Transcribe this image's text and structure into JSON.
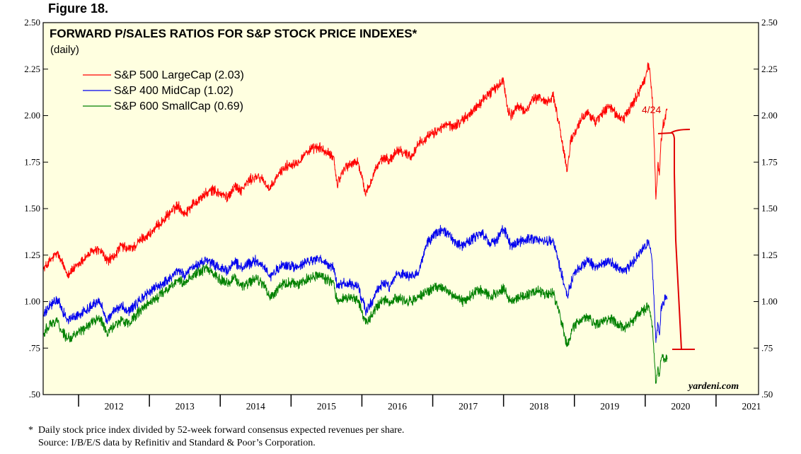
{
  "figure_label": "Figure 18.",
  "brand": "yardeni.com",
  "footnote": {
    "line1": "*  Daily stock price index divided by 52-week forward consensus expected revenues per share.",
    "line2": "    Source: I/B/E/S data by Refinitiv and Standard & Poor’s Corporation."
  },
  "chart_data": {
    "type": "line",
    "title": "FORWARD P/SALES RATIOS FOR S&P STOCK PRICE INDEXES*",
    "subtitle": "(daily)",
    "xlabel": "",
    "ylabel": "",
    "x_unit": "year",
    "xlim": [
      2011.5,
      2021.6
    ],
    "ylim": [
      0.5,
      2.5
    ],
    "yticks": [
      0.5,
      0.75,
      1.0,
      1.25,
      1.5,
      1.75,
      2.0,
      2.25,
      2.5
    ],
    "ytick_labels": [
      ".50",
      ".75",
      "1.00",
      "1.25",
      "1.50",
      "1.75",
      "2.00",
      "2.25",
      "2.50"
    ],
    "x_category_labels": [
      "2012",
      "2013",
      "2014",
      "2015",
      "2016",
      "2017",
      "2018",
      "2019",
      "2020",
      "2021"
    ],
    "legend_position": "top-left",
    "grid": false,
    "background": "#ffffe0",
    "annotations": [
      {
        "text": "4/24",
        "color": "#dd0000"
      }
    ],
    "series": [
      {
        "name": "S&P 500 LargeCap (2.03)",
        "color": "#ff0000",
        "x": [
          2011.5,
          2011.6,
          2011.7,
          2011.75,
          2011.85,
          2011.95,
          2012.1,
          2012.2,
          2012.3,
          2012.4,
          2012.5,
          2012.6,
          2012.7,
          2012.8,
          2012.9,
          2013.0,
          2013.1,
          2013.2,
          2013.3,
          2013.4,
          2013.5,
          2013.6,
          2013.7,
          2013.8,
          2013.9,
          2014.0,
          2014.1,
          2014.2,
          2014.3,
          2014.4,
          2014.5,
          2014.6,
          2014.7,
          2014.8,
          2014.9,
          2015.0,
          2015.1,
          2015.2,
          2015.3,
          2015.4,
          2015.5,
          2015.6,
          2015.65,
          2015.75,
          2015.85,
          2015.95,
          2016.05,
          2016.1,
          2016.2,
          2016.3,
          2016.4,
          2016.5,
          2016.6,
          2016.7,
          2016.8,
          2016.9,
          2017.0,
          2017.1,
          2017.2,
          2017.3,
          2017.4,
          2017.5,
          2017.6,
          2017.7,
          2017.8,
          2017.9,
          2018.0,
          2018.05,
          2018.1,
          2018.2,
          2018.3,
          2018.4,
          2018.5,
          2018.6,
          2018.7,
          2018.8,
          2018.9,
          2018.95,
          2019.0,
          2019.1,
          2019.2,
          2019.3,
          2019.4,
          2019.5,
          2019.6,
          2019.7,
          2019.8,
          2019.9,
          2020.0,
          2020.05,
          2020.1,
          2020.13,
          2020.15,
          2020.18,
          2020.2,
          2020.22,
          2020.25,
          2020.28,
          2020.31
        ],
        "values": [
          1.17,
          1.22,
          1.26,
          1.22,
          1.15,
          1.18,
          1.24,
          1.27,
          1.28,
          1.22,
          1.24,
          1.3,
          1.28,
          1.3,
          1.34,
          1.36,
          1.4,
          1.44,
          1.48,
          1.52,
          1.47,
          1.52,
          1.55,
          1.58,
          1.6,
          1.58,
          1.56,
          1.62,
          1.6,
          1.65,
          1.67,
          1.66,
          1.6,
          1.67,
          1.72,
          1.74,
          1.75,
          1.8,
          1.82,
          1.83,
          1.8,
          1.78,
          1.63,
          1.72,
          1.74,
          1.75,
          1.58,
          1.62,
          1.72,
          1.77,
          1.76,
          1.82,
          1.8,
          1.78,
          1.85,
          1.88,
          1.9,
          1.93,
          1.95,
          1.94,
          1.97,
          2.0,
          2.04,
          2.08,
          2.12,
          2.15,
          2.19,
          2.05,
          2.0,
          2.05,
          2.02,
          2.08,
          2.1,
          2.07,
          2.11,
          1.92,
          1.7,
          1.88,
          1.9,
          1.98,
          2.02,
          1.96,
          2.02,
          2.05,
          2.0,
          1.98,
          2.05,
          2.12,
          2.2,
          2.28,
          2.1,
          1.82,
          1.55,
          1.75,
          1.68,
          1.85,
          1.95,
          1.98,
          2.03
        ]
      },
      {
        "name": "S&P 400 MidCap (1.02)",
        "color": "#0000ee",
        "x": [
          2011.5,
          2011.6,
          2011.7,
          2011.75,
          2011.85,
          2011.95,
          2012.1,
          2012.2,
          2012.3,
          2012.4,
          2012.5,
          2012.6,
          2012.7,
          2012.8,
          2012.9,
          2013.0,
          2013.1,
          2013.2,
          2013.3,
          2013.4,
          2013.5,
          2013.6,
          2013.7,
          2013.8,
          2013.9,
          2014.0,
          2014.1,
          2014.2,
          2014.3,
          2014.4,
          2014.5,
          2014.6,
          2014.7,
          2014.8,
          2014.9,
          2015.0,
          2015.1,
          2015.2,
          2015.3,
          2015.4,
          2015.5,
          2015.6,
          2015.65,
          2015.75,
          2015.85,
          2015.95,
          2016.05,
          2016.1,
          2016.2,
          2016.3,
          2016.4,
          2016.5,
          2016.6,
          2016.7,
          2016.8,
          2016.9,
          2017.0,
          2017.1,
          2017.2,
          2017.3,
          2017.4,
          2017.5,
          2017.6,
          2017.7,
          2017.8,
          2017.9,
          2018.0,
          2018.05,
          2018.1,
          2018.2,
          2018.3,
          2018.4,
          2018.5,
          2018.6,
          2018.7,
          2018.8,
          2018.9,
          2018.95,
          2019.0,
          2019.1,
          2019.2,
          2019.3,
          2019.4,
          2019.5,
          2019.6,
          2019.7,
          2019.8,
          2019.9,
          2020.0,
          2020.05,
          2020.1,
          2020.13,
          2020.15,
          2020.18,
          2020.2,
          2020.22,
          2020.25,
          2020.28,
          2020.31
        ],
        "values": [
          0.92,
          0.98,
          1.01,
          0.97,
          0.9,
          0.92,
          0.95,
          0.99,
          1.0,
          0.9,
          0.95,
          0.98,
          0.95,
          0.98,
          1.02,
          1.05,
          1.08,
          1.1,
          1.13,
          1.17,
          1.14,
          1.18,
          1.2,
          1.22,
          1.2,
          1.18,
          1.16,
          1.22,
          1.18,
          1.2,
          1.22,
          1.2,
          1.13,
          1.17,
          1.2,
          1.19,
          1.18,
          1.21,
          1.22,
          1.23,
          1.2,
          1.18,
          1.08,
          1.1,
          1.09,
          1.08,
          0.95,
          0.97,
          1.05,
          1.1,
          1.08,
          1.15,
          1.14,
          1.13,
          1.15,
          1.3,
          1.35,
          1.38,
          1.37,
          1.33,
          1.3,
          1.32,
          1.35,
          1.36,
          1.32,
          1.33,
          1.39,
          1.35,
          1.3,
          1.32,
          1.33,
          1.34,
          1.33,
          1.32,
          1.33,
          1.18,
          1.03,
          1.1,
          1.15,
          1.2,
          1.22,
          1.18,
          1.2,
          1.22,
          1.18,
          1.16,
          1.2,
          1.25,
          1.3,
          1.33,
          1.2,
          0.95,
          0.78,
          0.88,
          0.82,
          0.95,
          1.0,
          1.01,
          1.02
        ]
      },
      {
        "name": "S&P 600 SmallCap (0.69)",
        "color": "#008000",
        "x": [
          2011.5,
          2011.6,
          2011.7,
          2011.75,
          2011.85,
          2011.95,
          2012.1,
          2012.2,
          2012.3,
          2012.4,
          2012.5,
          2012.6,
          2012.7,
          2012.8,
          2012.9,
          2013.0,
          2013.1,
          2013.2,
          2013.3,
          2013.4,
          2013.5,
          2013.6,
          2013.7,
          2013.8,
          2013.9,
          2014.0,
          2014.1,
          2014.2,
          2014.3,
          2014.4,
          2014.5,
          2014.6,
          2014.7,
          2014.8,
          2014.9,
          2015.0,
          2015.1,
          2015.2,
          2015.3,
          2015.4,
          2015.5,
          2015.6,
          2015.65,
          2015.75,
          2015.85,
          2015.95,
          2016.05,
          2016.1,
          2016.2,
          2016.3,
          2016.4,
          2016.5,
          2016.6,
          2016.7,
          2016.8,
          2016.9,
          2017.0,
          2017.1,
          2017.2,
          2017.3,
          2017.4,
          2017.5,
          2017.6,
          2017.7,
          2017.8,
          2017.9,
          2018.0,
          2018.05,
          2018.1,
          2018.2,
          2018.3,
          2018.4,
          2018.5,
          2018.6,
          2018.7,
          2018.8,
          2018.9,
          2018.95,
          2019.0,
          2019.1,
          2019.2,
          2019.3,
          2019.4,
          2019.5,
          2019.6,
          2019.7,
          2019.8,
          2019.9,
          2020.0,
          2020.05,
          2020.1,
          2020.13,
          2020.15,
          2020.18,
          2020.2,
          2020.22,
          2020.25,
          2020.28,
          2020.31
        ],
        "values": [
          0.83,
          0.88,
          0.9,
          0.85,
          0.8,
          0.82,
          0.86,
          0.9,
          0.91,
          0.83,
          0.87,
          0.9,
          0.88,
          0.92,
          0.96,
          0.99,
          1.02,
          1.05,
          1.08,
          1.12,
          1.1,
          1.14,
          1.16,
          1.18,
          1.15,
          1.12,
          1.1,
          1.13,
          1.08,
          1.1,
          1.12,
          1.1,
          1.02,
          1.06,
          1.1,
          1.1,
          1.09,
          1.12,
          1.13,
          1.14,
          1.12,
          1.1,
          1.0,
          1.03,
          1.02,
          1.01,
          0.88,
          0.9,
          0.97,
          1.01,
          0.99,
          1.02,
          1.01,
          1.0,
          1.02,
          1.05,
          1.07,
          1.08,
          1.06,
          1.03,
          1.0,
          1.02,
          1.05,
          1.06,
          1.03,
          1.04,
          1.07,
          1.04,
          1.0,
          1.02,
          1.03,
          1.05,
          1.06,
          1.04,
          1.05,
          0.92,
          0.76,
          0.83,
          0.87,
          0.9,
          0.92,
          0.88,
          0.9,
          0.91,
          0.88,
          0.86,
          0.89,
          0.93,
          0.96,
          0.97,
          0.87,
          0.68,
          0.56,
          0.65,
          0.6,
          0.68,
          0.7,
          0.69,
          0.69
        ]
      }
    ]
  }
}
